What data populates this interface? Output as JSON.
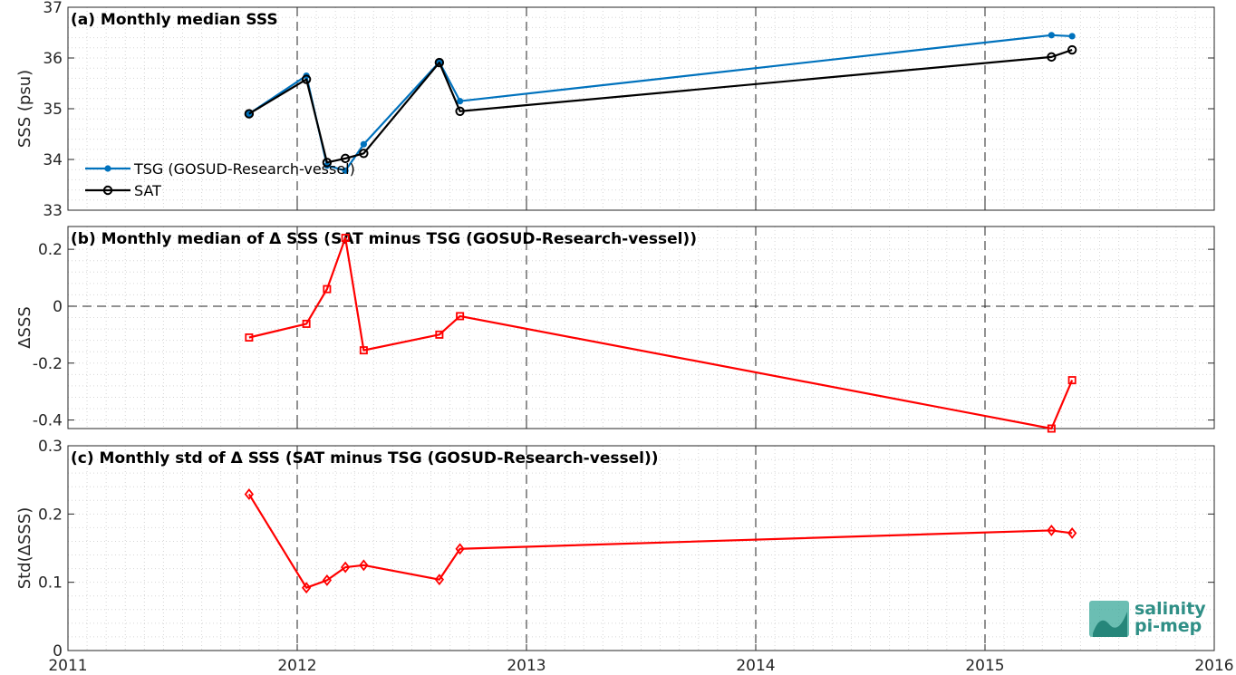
{
  "chart_data": [
    {
      "type": "line",
      "title": "(a) Monthly median SSS",
      "ylabel": "SSS (psu)",
      "xlim": [
        2011,
        2016
      ],
      "ylim": [
        33,
        37
      ],
      "xticks": [
        "2011",
        "2012",
        "2013",
        "2014",
        "2015",
        "2016"
      ],
      "yticks": [
        "33",
        "34",
        "35",
        "36",
        "37"
      ],
      "legend_position": "left",
      "series": [
        {
          "name": "TSG (GOSUD-Research-vessel)",
          "color": "#0072bd",
          "marker": "dot",
          "x": [
            2011.79,
            2012.04,
            2012.13,
            2012.21,
            2012.29,
            2012.62,
            2012.71,
            2015.29,
            2015.38
          ],
          "values": [
            34.9,
            35.65,
            33.88,
            33.78,
            34.3,
            35.92,
            35.15,
            36.45,
            36.43
          ]
        },
        {
          "name": "SAT",
          "color": "#000000",
          "marker": "circle",
          "x": [
            2011.79,
            2012.04,
            2012.13,
            2012.21,
            2012.29,
            2012.62,
            2012.71,
            2015.29,
            2015.38
          ],
          "values": [
            34.9,
            35.58,
            33.94,
            34.02,
            34.12,
            35.91,
            34.95,
            36.02,
            36.16
          ]
        }
      ]
    },
    {
      "type": "line",
      "title": "(b) Monthly median of Δ SSS (SAT minus TSG (GOSUD-Research-vessel))",
      "ylabel": "ΔSSS",
      "xlim": [
        2011,
        2016
      ],
      "ylim": [
        -0.43,
        0.28
      ],
      "xticks": [
        "2011",
        "2012",
        "2013",
        "2014",
        "2015",
        "2016"
      ],
      "yticks": [
        "-0.4",
        "-0.2",
        "0",
        "0.2"
      ],
      "zero_line": true,
      "series": [
        {
          "color": "#ff0000",
          "marker": "square",
          "x": [
            2011.79,
            2012.04,
            2012.13,
            2012.21,
            2012.29,
            2012.62,
            2012.71,
            2015.29,
            2015.38
          ],
          "values": [
            -0.11,
            -0.062,
            0.06,
            0.24,
            -0.155,
            -0.1,
            -0.035,
            -0.43,
            -0.26
          ]
        }
      ]
    },
    {
      "type": "line",
      "title": "(c) Monthly std of Δ SSS (SAT minus TSG (GOSUD-Research-vessel))",
      "ylabel": "Std(ΔSSS)",
      "xlim": [
        2011,
        2016
      ],
      "ylim": [
        0,
        0.3
      ],
      "xticks": [
        "2011",
        "2012",
        "2013",
        "2014",
        "2015",
        "2016"
      ],
      "yticks": [
        "0",
        "0.1",
        "0.2",
        "0.3"
      ],
      "series": [
        {
          "color": "#ff0000",
          "marker": "diamond",
          "x": [
            2011.79,
            2012.04,
            2012.13,
            2012.21,
            2012.29,
            2012.62,
            2012.71,
            2015.29,
            2015.38
          ],
          "values": [
            0.229,
            0.092,
            0.103,
            0.122,
            0.125,
            0.104,
            0.149,
            0.176,
            0.172
          ]
        }
      ]
    }
  ],
  "logo": {
    "line1": "salinity",
    "line2": "pi-mep"
  }
}
